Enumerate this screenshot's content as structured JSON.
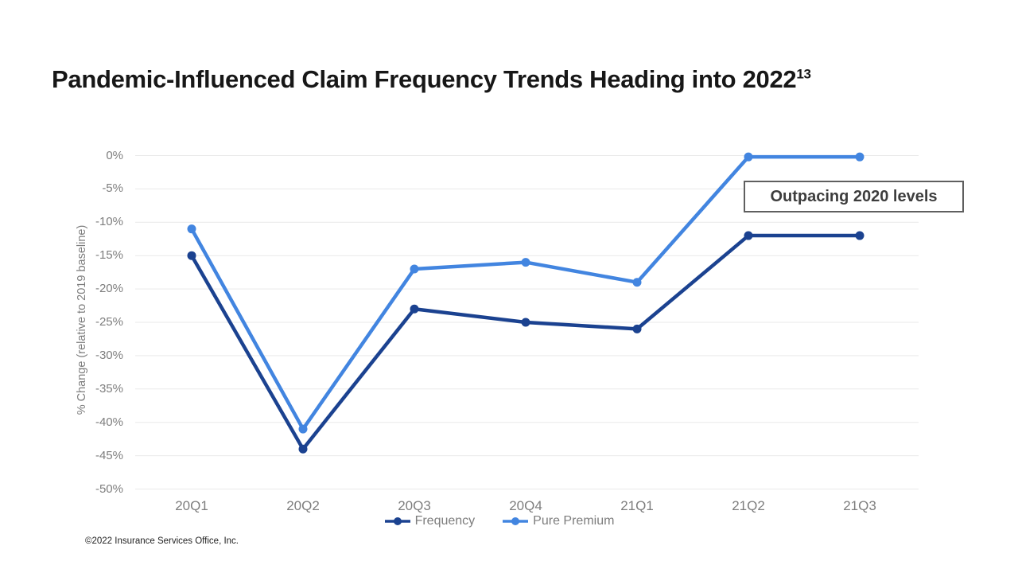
{
  "title": {
    "text": "Pandemic-Influenced Claim Frequency Trends Heading into 2022",
    "superscript": "13"
  },
  "annotation": {
    "label": "Outpacing 2020 levels"
  },
  "footer": {
    "copyright": "©2022 Insurance Services Office, Inc."
  },
  "chart_data": {
    "type": "line",
    "categories": [
      "20Q1",
      "20Q2",
      "20Q3",
      "20Q4",
      "21Q1",
      "21Q2",
      "21Q3"
    ],
    "series": [
      {
        "name": "Frequency",
        "color": "#1B4290",
        "values": [
          -15,
          -44,
          -23,
          -25,
          -26,
          -12,
          -12
        ]
      },
      {
        "name": "Pure Premium",
        "color": "#4285E0",
        "values": [
          -11,
          -41,
          -17,
          -16,
          -19,
          -0.2,
          -0.2
        ]
      }
    ],
    "xlabel": "",
    "ylabel": "% Change (relative to 2019 baseline)",
    "y_tick_labels": [
      "0%",
      "-5%",
      "-10%",
      "-15%",
      "-20%",
      "-25%",
      "-30%",
      "-35%",
      "-40%",
      "-45%",
      "-50%"
    ],
    "y_tick_values": [
      0,
      -5,
      -10,
      -15,
      -20,
      -25,
      -30,
      -35,
      -40,
      -45,
      -50
    ],
    "ylim": [
      -50,
      0
    ],
    "grid": true,
    "gridline_color": "#e9e9e9",
    "tick_label_color": "#7d7d7d",
    "legend_position": "bottom"
  }
}
